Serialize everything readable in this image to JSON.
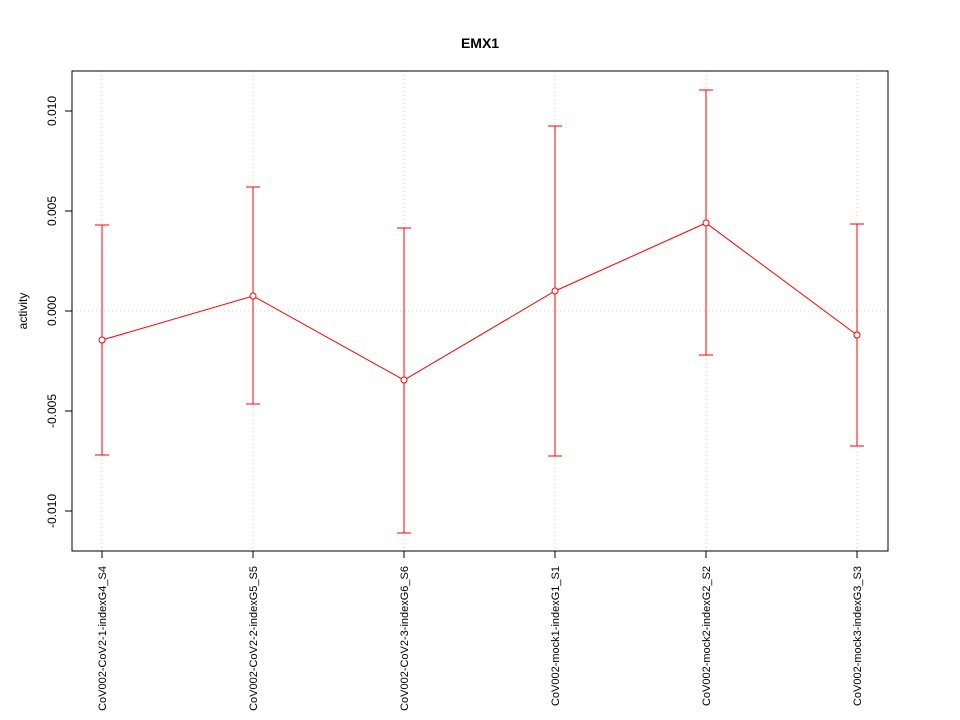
{
  "chart_data": {
    "type": "line",
    "title": "EMX1",
    "xlabel": "",
    "ylabel": "activity",
    "ylim": [
      -0.012,
      0.012
    ],
    "y_ticks": [
      -0.01,
      -0.005,
      0.0,
      0.005,
      0.01
    ],
    "y_tick_labels": [
      "-0.010",
      "-0.005",
      "0.000",
      "0.005",
      "0.010"
    ],
    "grid": true,
    "reference_line": 0.0,
    "categories": [
      "CoV002-CoV2-1-indexG4_S4",
      "CoV002-CoV2-2-indexG5_S5",
      "CoV002-CoV2-3-indexG6_S6",
      "CoV002-mock1-indexG1_S1",
      "CoV002-mock2-indexG2_S2",
      "CoV002-mock3-indexG3_S3"
    ],
    "series": [
      {
        "values": [
          -0.00145,
          0.00075,
          -0.00345,
          0.001,
          0.0044,
          -0.0012
        ],
        "upper": [
          0.0043,
          0.0062,
          0.00415,
          0.00925,
          0.01105,
          0.00435
        ],
        "lower": [
          -0.0072,
          -0.00465,
          -0.0111,
          -0.00725,
          -0.0022,
          -0.00675
        ],
        "color": "#ff0000"
      }
    ]
  }
}
